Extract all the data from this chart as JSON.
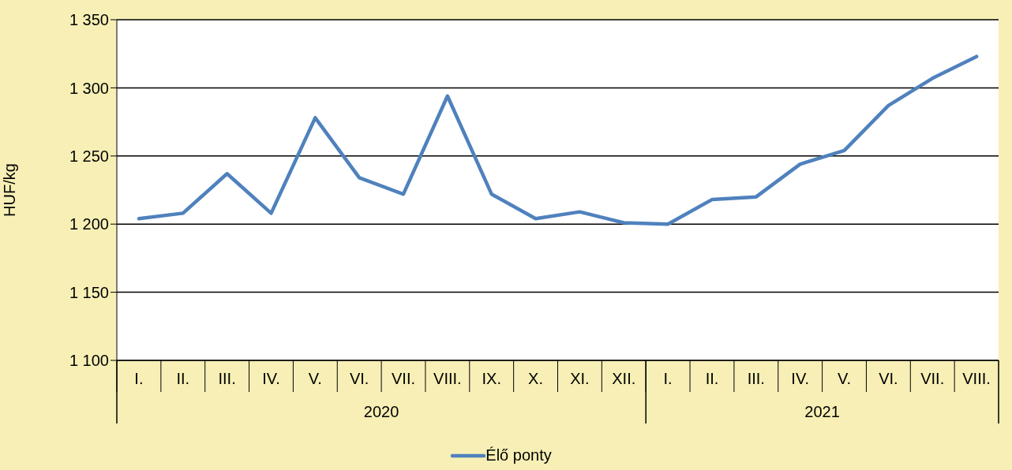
{
  "chart_data": {
    "type": "line",
    "ylabel": "HUF/kg",
    "categories": [
      "I.",
      "II.",
      "III.",
      "IV.",
      "V.",
      "VI.",
      "VII.",
      "VIII.",
      "IX.",
      "X.",
      "XI.",
      "XII.",
      "I.",
      "II.",
      "III.",
      "IV.",
      "V.",
      "VI.",
      "VII.",
      "VIII."
    ],
    "series": [
      {
        "name": "Élő ponty",
        "color": "#4f81bd",
        "values": [
          1204,
          1208,
          1237,
          1208,
          1278,
          1234,
          1222,
          1294,
          1222,
          1204,
          1209,
          1201,
          1200,
          1218,
          1220,
          1244,
          1254,
          1287,
          1307,
          1323
        ]
      }
    ],
    "ylim": [
      1100,
      1350
    ],
    "yticks": [
      {
        "value": 1100,
        "label": "1 100"
      },
      {
        "value": 1150,
        "label": "1 150"
      },
      {
        "value": 1200,
        "label": "1 200"
      },
      {
        "value": 1250,
        "label": "1 250"
      },
      {
        "value": 1300,
        "label": "1 300"
      },
      {
        "value": 1350,
        "label": "1 350"
      }
    ],
    "annotations": [
      "2020",
      "2021"
    ],
    "grid": "y",
    "legend": "bottom",
    "marker": "none",
    "line_style": "solid"
  }
}
